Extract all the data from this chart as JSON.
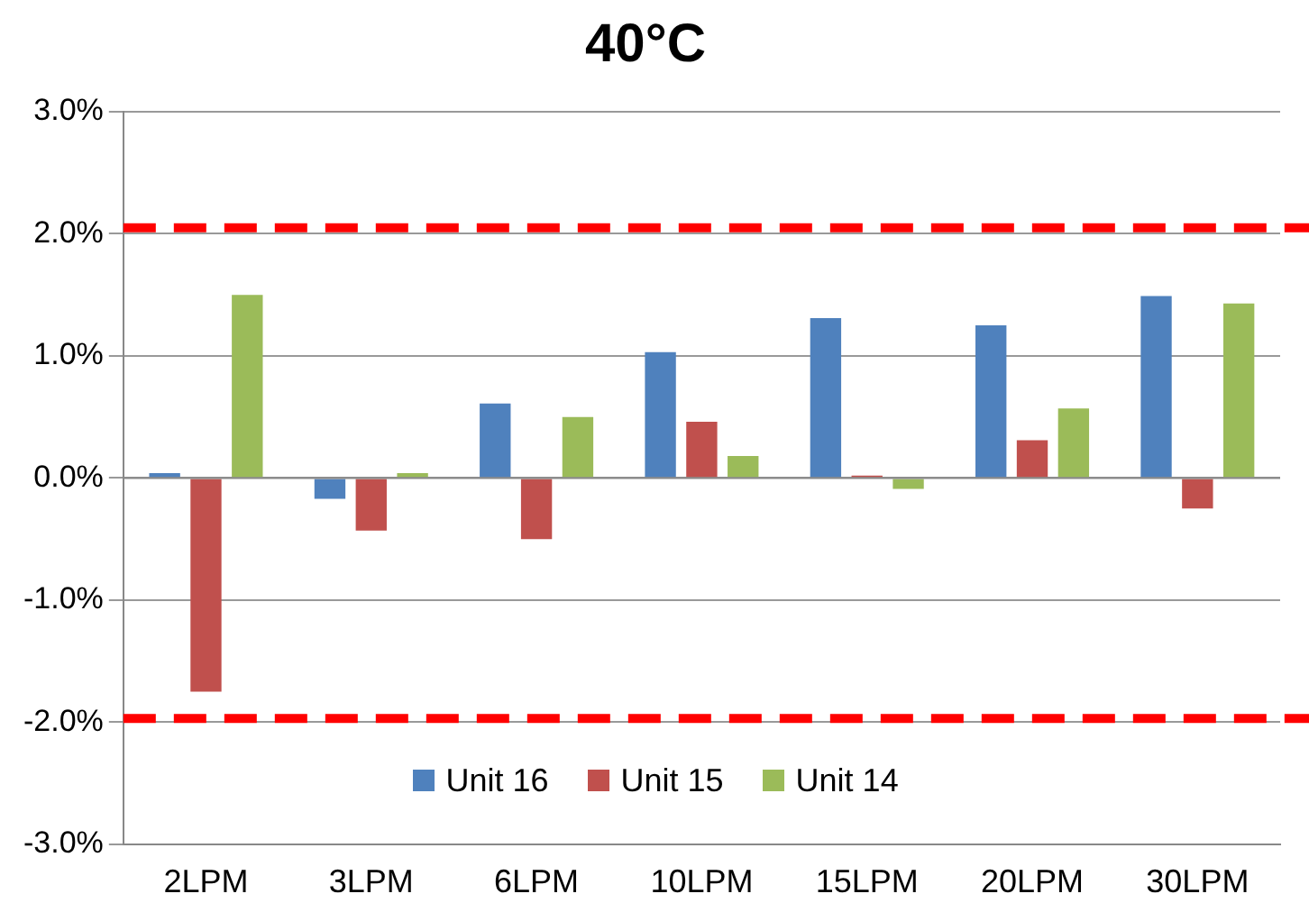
{
  "chart_data": {
    "type": "bar",
    "title": "40°C",
    "categories": [
      "2LPM",
      "3LPM",
      "6LPM",
      "10LPM",
      "15LPM",
      "20LPM",
      "30LPM"
    ],
    "series": [
      {
        "name": "Unit 16",
        "color": "#4f81bd",
        "values": [
          0.04,
          -0.17,
          0.61,
          1.03,
          1.31,
          1.25,
          1.49
        ]
      },
      {
        "name": "Unit 15",
        "color": "#c0504d",
        "values": [
          -1.75,
          -0.43,
          -0.5,
          0.46,
          0.02,
          0.31,
          -0.25
        ]
      },
      {
        "name": "Unit 14",
        "color": "#9bbb59",
        "values": [
          1.5,
          0.04,
          0.5,
          0.18,
          -0.09,
          0.57,
          1.43
        ]
      }
    ],
    "ylim": [
      -3,
      3
    ],
    "yticks": [
      {
        "value": -3,
        "label": "-3.0%"
      },
      {
        "value": -2,
        "label": "-2.0%"
      },
      {
        "value": -1,
        "label": "-1.0%"
      },
      {
        "value": 0,
        "label": "0.0%"
      },
      {
        "value": 1,
        "label": "1.0%"
      },
      {
        "value": 2,
        "label": "2.0%"
      },
      {
        "value": 3,
        "label": "3.0%"
      }
    ],
    "ref_lines": [
      {
        "axis": "y",
        "value": 2.05,
        "color": "#ff0000",
        "line_style": "dashed"
      },
      {
        "axis": "y",
        "value": -1.97,
        "color": "#ff0000",
        "line_style": "dashed"
      }
    ],
    "grid": "y",
    "legend": "bottom"
  }
}
